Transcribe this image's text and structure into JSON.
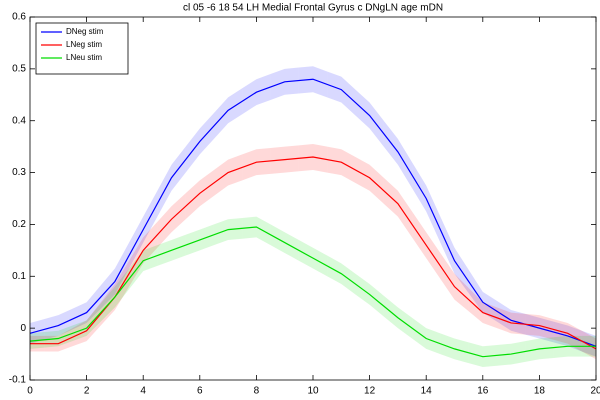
{
  "chart_data": {
    "type": "line",
    "title": "cl 05 -6 18 54 LH Medial Frontal Gyrus c DNgLN age mDN",
    "x": [
      0,
      1,
      2,
      3,
      4,
      5,
      6,
      7,
      8,
      9,
      10,
      11,
      12,
      13,
      14,
      15,
      16,
      17,
      18,
      19,
      20
    ],
    "series": [
      {
        "name": "DNeg stim",
        "color": "#0000ff",
        "values": [
          -0.01,
          0.005,
          0.03,
          0.09,
          0.19,
          0.29,
          0.36,
          0.42,
          0.455,
          0.475,
          0.48,
          0.46,
          0.41,
          0.34,
          0.25,
          0.13,
          0.05,
          0.015,
          0.0,
          -0.015,
          -0.035
        ],
        "errors": [
          0.02,
          0.02,
          0.02,
          0.025,
          0.025,
          0.025,
          0.025,
          0.025,
          0.025,
          0.025,
          0.025,
          0.025,
          0.025,
          0.025,
          0.025,
          0.025,
          0.02,
          0.02,
          0.02,
          0.02,
          0.02
        ]
      },
      {
        "name": "LNeg stim",
        "color": "#ff0000",
        "values": [
          -0.03,
          -0.03,
          -0.005,
          0.06,
          0.15,
          0.21,
          0.26,
          0.3,
          0.32,
          0.325,
          0.33,
          0.32,
          0.29,
          0.24,
          0.16,
          0.08,
          0.03,
          0.01,
          0.005,
          -0.01,
          -0.04
        ],
        "errors": [
          0.015,
          0.015,
          0.02,
          0.025,
          0.025,
          0.025,
          0.025,
          0.025,
          0.025,
          0.025,
          0.025,
          0.025,
          0.025,
          0.025,
          0.025,
          0.025,
          0.02,
          0.02,
          0.02,
          0.02,
          0.02
        ]
      },
      {
        "name": "LNeu stim",
        "color": "#00dd00",
        "values": [
          -0.025,
          -0.02,
          0.0,
          0.06,
          0.13,
          0.15,
          0.17,
          0.19,
          0.195,
          0.165,
          0.135,
          0.105,
          0.065,
          0.02,
          -0.02,
          -0.04,
          -0.055,
          -0.05,
          -0.04,
          -0.035,
          -0.035
        ],
        "errors": [
          0.015,
          0.015,
          0.015,
          0.02,
          0.02,
          0.02,
          0.02,
          0.02,
          0.02,
          0.02,
          0.02,
          0.02,
          0.02,
          0.02,
          0.02,
          0.02,
          0.02,
          0.02,
          0.02,
          0.02,
          0.02
        ]
      }
    ],
    "xlim": [
      0,
      20
    ],
    "xticks": [
      0,
      2,
      4,
      6,
      8,
      10,
      12,
      14,
      16,
      18,
      20
    ],
    "ylim": [
      -0.1,
      0.6
    ],
    "yticks": [
      -0.1,
      0,
      0.1,
      0.2,
      0.3,
      0.4,
      0.5,
      0.6
    ],
    "grid": false,
    "legend": "upper left"
  }
}
